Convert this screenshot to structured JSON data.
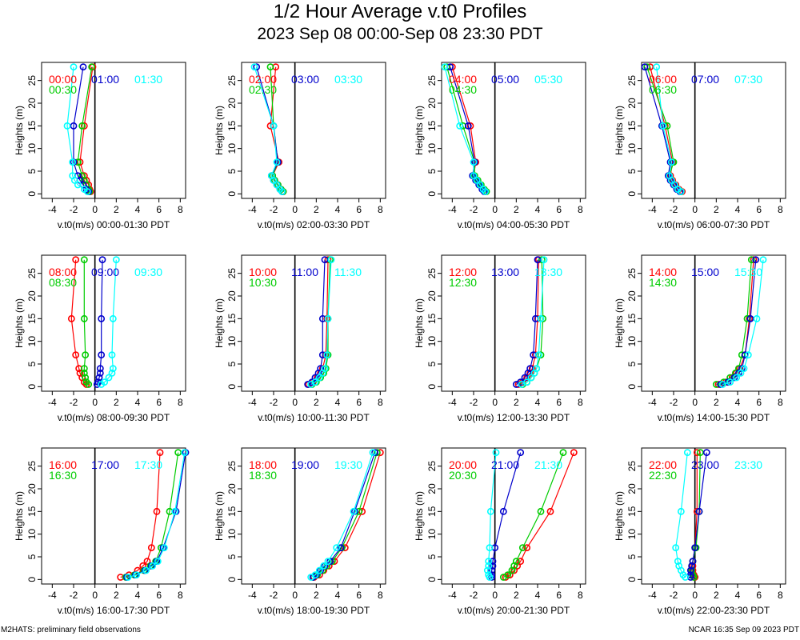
{
  "title": "1/2 Hour Average v.t0 Profiles",
  "subtitle": "2023 Sep 08 00:00-Sep 08 23:30 PDT",
  "footer_left": "M2HATS: preliminary field observations",
  "footer_right": "NCAR 16:35 Sep 09 2023 PDT",
  "colors": {
    "slot1": "#ff0000",
    "slot2": "#00cc00",
    "slot3": "#0000cc",
    "slot4": "#00ffff",
    "axes": "#000000"
  },
  "chart_data": [
    {
      "type": "line",
      "xlabel": "v.t0(m/s) 00:00-01:30 PDT",
      "ylabel": "Heights (m)",
      "xlim": [
        -5,
        8.5
      ],
      "ylim": [
        -1,
        29
      ],
      "xticks": [
        -4,
        -2,
        0,
        2,
        4,
        6,
        8
      ],
      "yticks": [
        0,
        5,
        10,
        15,
        20,
        25
      ],
      "heights": [
        0.5,
        1,
        2,
        3,
        4,
        7,
        15,
        28
      ],
      "series": [
        {
          "name": "00:00",
          "values": [
            -0.4,
            -0.5,
            -0.6,
            -0.8,
            -1.0,
            -1.4,
            -1.0,
            -0.2
          ]
        },
        {
          "name": "00:30",
          "values": [
            -0.5,
            -0.6,
            -0.8,
            -1.0,
            -1.2,
            -1.6,
            -1.2,
            -0.3
          ]
        },
        {
          "name": "01:00",
          "values": [
            -0.6,
            -0.8,
            -1.1,
            -1.4,
            -1.6,
            -2.0,
            -2.0,
            -1.1
          ]
        },
        {
          "name": "01:30",
          "values": [
            -0.7,
            -1.0,
            -1.6,
            -1.9,
            -2.1,
            -2.1,
            -2.6,
            -2.0
          ]
        }
      ]
    },
    {
      "type": "line",
      "xlabel": "v.t0(m/s) 02:00-03:30 PDT",
      "ylabel": "Heights (m)",
      "xlim": [
        -5,
        8.5
      ],
      "ylim": [
        -1,
        29
      ],
      "xticks": [
        -4,
        -2,
        0,
        2,
        4,
        6,
        8
      ],
      "yticks": [
        0,
        5,
        10,
        15,
        20,
        25
      ],
      "heights": [
        0.5,
        1,
        2,
        3,
        4,
        7,
        15,
        28
      ],
      "series": [
        {
          "name": "02:00",
          "values": [
            -1.1,
            -1.3,
            -1.6,
            -1.9,
            -2.1,
            -1.5,
            -2.3,
            -1.8
          ]
        },
        {
          "name": "02:30",
          "values": [
            -1.1,
            -1.3,
            -1.6,
            -1.9,
            -2.1,
            -1.6,
            -2.0,
            -2.3
          ]
        },
        {
          "name": "03:00",
          "values": [
            -1.2,
            -1.4,
            -1.7,
            -2.0,
            -2.2,
            -1.6,
            -2.0,
            -3.6
          ]
        },
        {
          "name": "03:30",
          "values": [
            -1.2,
            -1.4,
            -1.7,
            -2.0,
            -2.2,
            -1.7,
            -2.0,
            -3.8
          ]
        }
      ]
    },
    {
      "type": "line",
      "xlabel": "v.t0(m/s) 04:00-05:30 PDT",
      "ylabel": "Heights (m)",
      "xlim": [
        -5,
        8.5
      ],
      "ylim": [
        -1,
        29
      ],
      "xticks": [
        -4,
        -2,
        0,
        2,
        4,
        6,
        8
      ],
      "yticks": [
        0,
        5,
        10,
        15,
        20,
        25
      ],
      "heights": [
        0.5,
        1,
        2,
        3,
        4,
        7,
        15,
        28
      ],
      "series": [
        {
          "name": "04:00",
          "values": [
            -0.9,
            -1.1,
            -1.4,
            -1.7,
            -2.0,
            -1.8,
            -2.3,
            -4.0
          ]
        },
        {
          "name": "04:30",
          "values": [
            -0.8,
            -1.0,
            -1.3,
            -1.6,
            -1.9,
            -1.9,
            -3.0,
            -4.5
          ]
        },
        {
          "name": "05:00",
          "values": [
            -1.0,
            -1.2,
            -1.5,
            -1.8,
            -2.1,
            -1.9,
            -2.5,
            -4.2
          ]
        },
        {
          "name": "05:30",
          "values": [
            -0.9,
            -1.1,
            -1.4,
            -1.7,
            -2.0,
            -2.0,
            -3.3,
            -4.7
          ]
        }
      ]
    },
    {
      "type": "line",
      "xlabel": "v.t0(m/s) 06:00-07:30 PDT",
      "ylabel": "Heights (m)",
      "xlim": [
        -5,
        8.5
      ],
      "ylim": [
        -1,
        29
      ],
      "xticks": [
        -4,
        -2,
        0,
        2,
        4,
        6,
        8
      ],
      "yticks": [
        0,
        5,
        10,
        15,
        20,
        25
      ],
      "heights": [
        0.5,
        1,
        2,
        3,
        4,
        7,
        15,
        28
      ],
      "series": [
        {
          "name": "06:00",
          "values": [
            -1.2,
            -1.5,
            -1.8,
            -2.1,
            -2.3,
            -2.1,
            -2.8,
            -4.2
          ]
        },
        {
          "name": "06:30",
          "values": [
            -1.3,
            -1.6,
            -1.9,
            -2.2,
            -2.4,
            -2.0,
            -2.6,
            -4.5
          ]
        },
        {
          "name": "07:00",
          "values": [
            -1.4,
            -1.7,
            -2.0,
            -2.3,
            -2.5,
            -2.3,
            -3.1,
            -4.7
          ]
        },
        {
          "name": "07:30",
          "values": [
            -1.3,
            -1.6,
            -1.9,
            -2.2,
            -2.4,
            -2.2,
            -3.0,
            -3.6
          ]
        }
      ]
    },
    {
      "type": "line",
      "xlabel": "v.t0(m/s) 08:00-09:30 PDT",
      "ylabel": "Heights (m)",
      "xlim": [
        -5,
        8.5
      ],
      "ylim": [
        -1,
        29
      ],
      "xticks": [
        -4,
        -2,
        0,
        2,
        4,
        6,
        8
      ],
      "yticks": [
        0,
        5,
        10,
        15,
        20,
        25
      ],
      "heights": [
        0.5,
        1,
        2,
        3,
        4,
        7,
        15,
        28
      ],
      "series": [
        {
          "name": "08:00",
          "values": [
            -0.8,
            -1.0,
            -1.2,
            -1.4,
            -1.5,
            -1.8,
            -2.2,
            -1.8
          ]
        },
        {
          "name": "08:30",
          "values": [
            -0.6,
            -0.8,
            -0.9,
            -1.0,
            -1.0,
            -0.9,
            -1.0,
            -1.0
          ]
        },
        {
          "name": "09:00",
          "values": [
            0.2,
            0.3,
            0.4,
            0.5,
            0.5,
            0.6,
            0.6,
            0.7
          ]
        },
        {
          "name": "09:30",
          "values": [
            0.6,
            0.9,
            1.3,
            1.6,
            1.7,
            1.6,
            1.7,
            2.0
          ]
        }
      ]
    },
    {
      "type": "line",
      "xlabel": "v.t0(m/s) 10:00-11:30 PDT",
      "ylabel": "Heights (m)",
      "xlim": [
        -5,
        8.5
      ],
      "ylim": [
        -1,
        29
      ],
      "xticks": [
        -4,
        -2,
        0,
        2,
        4,
        6,
        8
      ],
      "yticks": [
        0,
        5,
        10,
        15,
        20,
        25
      ],
      "heights": [
        0.5,
        1,
        2,
        3,
        4,
        7,
        15,
        28
      ],
      "series": [
        {
          "name": "10:00",
          "values": [
            1.3,
            1.7,
            2.1,
            2.4,
            2.6,
            2.9,
            3.0,
            3.1
          ]
        },
        {
          "name": "10:30",
          "values": [
            1.6,
            2.0,
            2.4,
            2.7,
            2.9,
            3.1,
            3.1,
            3.3
          ]
        },
        {
          "name": "11:00",
          "values": [
            1.2,
            1.6,
            1.9,
            2.2,
            2.4,
            2.6,
            2.6,
            2.8
          ]
        },
        {
          "name": "11:30",
          "values": [
            1.5,
            1.9,
            2.3,
            2.6,
            2.8,
            3.0,
            3.1,
            3.4
          ]
        }
      ]
    },
    {
      "type": "line",
      "xlabel": "v.t0(m/s) 12:00-13:30 PDT",
      "ylabel": "Heights (m)",
      "xlim": [
        -5,
        8.5
      ],
      "ylim": [
        -1,
        29
      ],
      "xticks": [
        -4,
        -2,
        0,
        2,
        4,
        6,
        8
      ],
      "yticks": [
        0,
        5,
        10,
        15,
        20,
        25
      ],
      "heights": [
        0.5,
        1,
        2,
        3,
        4,
        7,
        15,
        28
      ],
      "series": [
        {
          "name": "12:00",
          "values": [
            2.2,
            2.6,
            3.0,
            3.3,
            3.5,
            3.8,
            4.0,
            4.1
          ]
        },
        {
          "name": "12:30",
          "values": [
            2.6,
            3.0,
            3.4,
            3.7,
            3.9,
            4.3,
            4.5,
            4.4
          ]
        },
        {
          "name": "13:00",
          "values": [
            2.0,
            2.4,
            2.8,
            3.1,
            3.3,
            3.6,
            3.8,
            4.0
          ]
        },
        {
          "name": "13:30",
          "values": [
            2.5,
            3.0,
            3.4,
            3.7,
            3.9,
            4.1,
            4.3,
            4.6
          ]
        }
      ]
    },
    {
      "type": "line",
      "xlabel": "v.t0(m/s) 14:00-15:30 PDT",
      "ylabel": "Heights (m)",
      "xlim": [
        -5,
        8.5
      ],
      "ylim": [
        -1,
        29
      ],
      "xticks": [
        -4,
        -2,
        0,
        2,
        4,
        6,
        8
      ],
      "yticks": [
        0,
        5,
        10,
        15,
        20,
        25
      ],
      "heights": [
        0.5,
        1,
        2,
        3,
        4,
        7,
        15,
        28
      ],
      "series": [
        {
          "name": "14:00",
          "values": [
            2.2,
            2.9,
            3.5,
            3.9,
            4.2,
            4.7,
            5.1,
            5.5
          ]
        },
        {
          "name": "14:30",
          "values": [
            2.0,
            2.7,
            3.3,
            3.8,
            4.1,
            4.4,
            4.9,
            5.3
          ]
        },
        {
          "name": "15:00",
          "values": [
            2.4,
            3.1,
            3.7,
            4.1,
            4.4,
            4.7,
            5.2,
            5.7
          ]
        },
        {
          "name": "15:30",
          "values": [
            2.6,
            3.3,
            3.9,
            4.3,
            4.6,
            5.0,
            5.8,
            6.4
          ]
        }
      ]
    },
    {
      "type": "line",
      "xlabel": "v.t0(m/s) 16:00-17:30 PDT",
      "ylabel": "Heights (m)",
      "xlim": [
        -5,
        8.5
      ],
      "ylim": [
        -1,
        29
      ],
      "xticks": [
        -4,
        -2,
        0,
        2,
        4,
        6,
        8
      ],
      "yticks": [
        0,
        5,
        10,
        15,
        20,
        25
      ],
      "heights": [
        0.5,
        1,
        2,
        3,
        4,
        7,
        15,
        28
      ],
      "series": [
        {
          "name": "16:00",
          "values": [
            2.4,
            3.2,
            4.0,
            4.5,
            4.9,
            5.3,
            5.8,
            6.1
          ]
        },
        {
          "name": "16:30",
          "values": [
            2.9,
            3.7,
            4.6,
            5.2,
            5.7,
            6.2,
            7.0,
            7.8
          ]
        },
        {
          "name": "17:00",
          "values": [
            3.0,
            3.8,
            4.7,
            5.3,
            5.8,
            6.4,
            7.6,
            8.5
          ]
        },
        {
          "name": "17:30",
          "values": [
            3.1,
            3.9,
            4.8,
            5.4,
            5.9,
            6.5,
            7.5,
            8.4
          ]
        }
      ]
    },
    {
      "type": "line",
      "xlabel": "v.t0(m/s) 18:00-19:30 PDT",
      "ylabel": "Heights (m)",
      "xlim": [
        -5,
        8.5
      ],
      "ylim": [
        -1,
        29
      ],
      "xticks": [
        -4,
        -2,
        0,
        2,
        4,
        6,
        8
      ],
      "yticks": [
        0,
        5,
        10,
        15,
        20,
        25
      ],
      "heights": [
        0.5,
        1,
        2,
        3,
        4,
        7,
        15,
        28
      ],
      "series": [
        {
          "name": "18:00",
          "values": [
            1.8,
            2.3,
            2.7,
            3.2,
            3.7,
            4.7,
            6.3,
            8.0
          ]
        },
        {
          "name": "18:30",
          "values": [
            1.7,
            2.1,
            2.6,
            3.0,
            3.5,
            4.4,
            6.0,
            7.7
          ]
        },
        {
          "name": "19:00",
          "values": [
            1.7,
            2.0,
            2.4,
            2.8,
            3.3,
            4.3,
            5.6,
            7.5
          ]
        },
        {
          "name": "19:30",
          "values": [
            1.5,
            1.9,
            2.3,
            2.7,
            3.1,
            3.9,
            5.5,
            7.3
          ]
        }
      ]
    },
    {
      "type": "line",
      "xlabel": "v.t0(m/s) 20:00-21:30 PDT",
      "ylabel": "Heights (m)",
      "xlim": [
        -5,
        8.5
      ],
      "ylim": [
        -1,
        29
      ],
      "xticks": [
        -4,
        -2,
        0,
        2,
        4,
        6,
        8
      ],
      "yticks": [
        0,
        5,
        10,
        15,
        20,
        25
      ],
      "heights": [
        0.5,
        1,
        2,
        3,
        4,
        7,
        15,
        28
      ],
      "series": [
        {
          "name": "20:00",
          "values": [
            1.0,
            1.4,
            1.8,
            2.1,
            2.4,
            3.0,
            5.2,
            7.4
          ]
        },
        {
          "name": "20:30",
          "values": [
            0.8,
            1.2,
            1.6,
            1.8,
            2.0,
            2.6,
            4.3,
            6.4
          ]
        },
        {
          "name": "21:00",
          "values": [
            -0.3,
            -0.3,
            -0.3,
            -0.2,
            -0.2,
            0.0,
            0.8,
            2.4
          ]
        },
        {
          "name": "21:30",
          "values": [
            -0.5,
            -0.6,
            -0.7,
            -0.6,
            -0.6,
            -0.5,
            -0.4,
            0.1
          ]
        }
      ]
    },
    {
      "type": "line",
      "xlabel": "v.t0(m/s) 22:00-23:30 PDT",
      "ylabel": "Heights (m)",
      "xlim": [
        -5,
        8.5
      ],
      "ylim": [
        -1,
        29
      ],
      "xticks": [
        -4,
        -2,
        0,
        2,
        4,
        6,
        8
      ],
      "yticks": [
        0,
        5,
        10,
        15,
        20,
        25
      ],
      "heights": [
        0.5,
        1,
        2,
        3,
        4,
        7,
        15,
        28
      ],
      "series": [
        {
          "name": "22:00",
          "values": [
            0.0,
            -0.1,
            -0.2,
            -0.2,
            -0.2,
            0.0,
            0.2,
            0.2
          ]
        },
        {
          "name": "22:30",
          "values": [
            -0.1,
            -0.2,
            -0.3,
            -0.3,
            -0.2,
            0.1,
            0.4,
            0.5
          ]
        },
        {
          "name": "23:00",
          "values": [
            -0.4,
            -0.4,
            -0.4,
            -0.3,
            -0.2,
            0.0,
            0.4,
            1.1
          ]
        },
        {
          "name": "23:30",
          "values": [
            -0.9,
            -1.1,
            -1.3,
            -1.5,
            -1.6,
            -1.8,
            -1.3,
            -0.7
          ]
        }
      ]
    }
  ]
}
